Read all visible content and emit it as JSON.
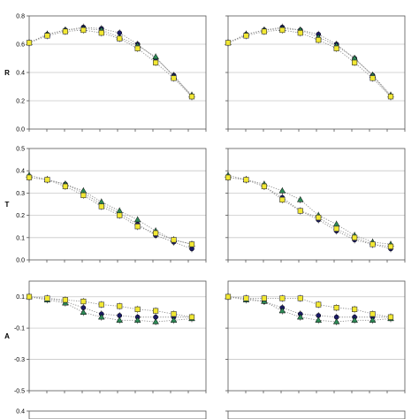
{
  "chart_data": [
    {
      "type": "scatter",
      "row": "R",
      "col": 0,
      "ylabel": "R",
      "ylim": [
        0,
        0.8
      ],
      "yticks": [
        "0.8",
        "0.6",
        "0.4",
        "0.2",
        "0.0"
      ],
      "yticks_values": [
        0.8,
        0.6,
        0.4,
        0.2,
        0.0
      ],
      "x": [
        1,
        2,
        3,
        4,
        5,
        6,
        7,
        8,
        9,
        10
      ],
      "grid": true,
      "series": [
        {
          "marker": "circle",
          "color": "#1a1a66",
          "values": [
            0.61,
            0.67,
            0.7,
            0.72,
            0.71,
            0.68,
            0.6,
            0.5,
            0.38,
            0.23
          ]
        },
        {
          "marker": "triangle",
          "color": "#2e8b57",
          "values": [
            0.61,
            0.67,
            0.7,
            0.71,
            0.7,
            0.65,
            0.59,
            0.51,
            0.37,
            0.24
          ]
        },
        {
          "marker": "square",
          "color": "#f2e833",
          "values": [
            0.61,
            0.66,
            0.69,
            0.7,
            0.68,
            0.64,
            0.57,
            0.47,
            0.36,
            0.23
          ]
        }
      ]
    },
    {
      "type": "scatter",
      "row": "R",
      "col": 1,
      "ylabel": "",
      "ylim": [
        0,
        0.8
      ],
      "yticks": [],
      "yticks_values": [
        0.8,
        0.6,
        0.4,
        0.2,
        0.0
      ],
      "x": [
        1,
        2,
        3,
        4,
        5,
        6,
        7,
        8,
        9,
        10
      ],
      "grid": true,
      "series": [
        {
          "marker": "circle",
          "color": "#1a1a66",
          "values": [
            0.61,
            0.67,
            0.7,
            0.72,
            0.7,
            0.67,
            0.6,
            0.5,
            0.38,
            0.23
          ]
        },
        {
          "marker": "triangle",
          "color": "#2e8b57",
          "values": [
            0.61,
            0.67,
            0.7,
            0.71,
            0.7,
            0.65,
            0.59,
            0.5,
            0.38,
            0.24
          ]
        },
        {
          "marker": "square",
          "color": "#f2e833",
          "values": [
            0.61,
            0.66,
            0.69,
            0.7,
            0.68,
            0.63,
            0.57,
            0.47,
            0.36,
            0.23
          ]
        }
      ]
    },
    {
      "type": "scatter",
      "row": "T",
      "col": 0,
      "ylabel": "T",
      "ylim": [
        0,
        0.5
      ],
      "yticks": [
        "0.5",
        "0.4",
        "0.3",
        "0.2",
        "0.1",
        "0.0"
      ],
      "yticks_values": [
        0.5,
        0.4,
        0.3,
        0.2,
        0.1,
        0.0
      ],
      "x": [
        1,
        2,
        3,
        4,
        5,
        6,
        7,
        8,
        9,
        10
      ],
      "grid": true,
      "series": [
        {
          "marker": "circle",
          "color": "#1a1a66",
          "values": [
            0.37,
            0.36,
            0.34,
            0.3,
            0.25,
            0.21,
            0.16,
            0.11,
            0.08,
            0.05
          ]
        },
        {
          "marker": "triangle",
          "color": "#2e8b57",
          "values": [
            0.38,
            0.36,
            0.34,
            0.31,
            0.26,
            0.22,
            0.18,
            0.13,
            0.09,
            0.07
          ]
        },
        {
          "marker": "square",
          "color": "#f2e833",
          "values": [
            0.37,
            0.36,
            0.33,
            0.29,
            0.24,
            0.2,
            0.15,
            0.12,
            0.09,
            0.07
          ]
        }
      ]
    },
    {
      "type": "scatter",
      "row": "T",
      "col": 1,
      "ylabel": "",
      "ylim": [
        0,
        0.5
      ],
      "yticks": [],
      "yticks_values": [
        0.5,
        0.4,
        0.3,
        0.2,
        0.1,
        0.0
      ],
      "x": [
        1,
        2,
        3,
        4,
        5,
        6,
        7,
        8,
        9,
        10
      ],
      "grid": true,
      "series": [
        {
          "marker": "circle",
          "color": "#1a1a66",
          "values": [
            0.37,
            0.36,
            0.33,
            0.28,
            0.22,
            0.18,
            0.13,
            0.09,
            0.07,
            0.05
          ]
        },
        {
          "marker": "triangle",
          "color": "#2e8b57",
          "values": [
            0.38,
            0.36,
            0.34,
            0.31,
            0.27,
            0.2,
            0.16,
            0.11,
            0.08,
            0.07
          ]
        },
        {
          "marker": "square",
          "color": "#f2e833",
          "values": [
            0.37,
            0.36,
            0.33,
            0.27,
            0.22,
            0.19,
            0.14,
            0.1,
            0.07,
            0.06
          ]
        }
      ]
    },
    {
      "type": "scatter",
      "row": "A",
      "col": 0,
      "ylabel": "A",
      "ylim": [
        -0.5,
        0.2
      ],
      "yticks": [
        "0.1",
        "-0.1",
        "-0.3",
        "-0.5"
      ],
      "yticks_values": [
        0.1,
        -0.1,
        -0.3,
        -0.5
      ],
      "x": [
        1,
        2,
        3,
        4,
        5,
        6,
        7,
        8,
        9,
        10
      ],
      "grid": true,
      "series": [
        {
          "marker": "circle",
          "color": "#1a1a66",
          "values": [
            0.1,
            0.09,
            0.07,
            0.03,
            -0.01,
            -0.02,
            -0.03,
            -0.03,
            -0.03,
            -0.03
          ]
        },
        {
          "marker": "triangle",
          "color": "#2e8b57",
          "values": [
            0.1,
            0.08,
            0.06,
            0.0,
            -0.03,
            -0.05,
            -0.05,
            -0.06,
            -0.05,
            -0.04
          ]
        },
        {
          "marker": "square",
          "color": "#f2e833",
          "values": [
            0.1,
            0.09,
            0.08,
            0.07,
            0.05,
            0.04,
            0.02,
            0.01,
            -0.01,
            -0.03
          ]
        }
      ]
    },
    {
      "type": "scatter",
      "row": "A",
      "col": 1,
      "ylabel": "",
      "ylim": [
        -0.5,
        0.2
      ],
      "yticks": [],
      "yticks_values": [
        0.1,
        -0.1,
        -0.3,
        -0.5
      ],
      "x": [
        1,
        2,
        3,
        4,
        5,
        6,
        7,
        8,
        9,
        10
      ],
      "grid": true,
      "series": [
        {
          "marker": "circle",
          "color": "#1a1a66",
          "values": [
            0.1,
            0.09,
            0.07,
            0.03,
            -0.01,
            -0.02,
            -0.03,
            -0.03,
            -0.03,
            -0.03
          ]
        },
        {
          "marker": "triangle",
          "color": "#2e8b57",
          "values": [
            0.1,
            0.08,
            0.07,
            0.01,
            -0.03,
            -0.05,
            -0.06,
            -0.05,
            -0.05,
            -0.04
          ]
        },
        {
          "marker": "square",
          "color": "#f2e833",
          "values": [
            0.1,
            0.09,
            0.09,
            0.09,
            0.09,
            0.05,
            0.03,
            0.02,
            -0.01,
            -0.03
          ]
        }
      ]
    },
    {
      "type": "scatter",
      "row": "bottom",
      "col": 0,
      "ylabel": "",
      "ylim": [
        0,
        0.4
      ],
      "yticks": [
        "0.4"
      ],
      "yticks_values": [
        0.4
      ],
      "x": [],
      "grid": true,
      "series": []
    },
    {
      "type": "scatter",
      "row": "bottom",
      "col": 1,
      "ylabel": "",
      "ylim": [
        0,
        0.4
      ],
      "yticks": [],
      "yticks_values": [
        0.4
      ],
      "x": [],
      "grid": true,
      "series": []
    }
  ]
}
